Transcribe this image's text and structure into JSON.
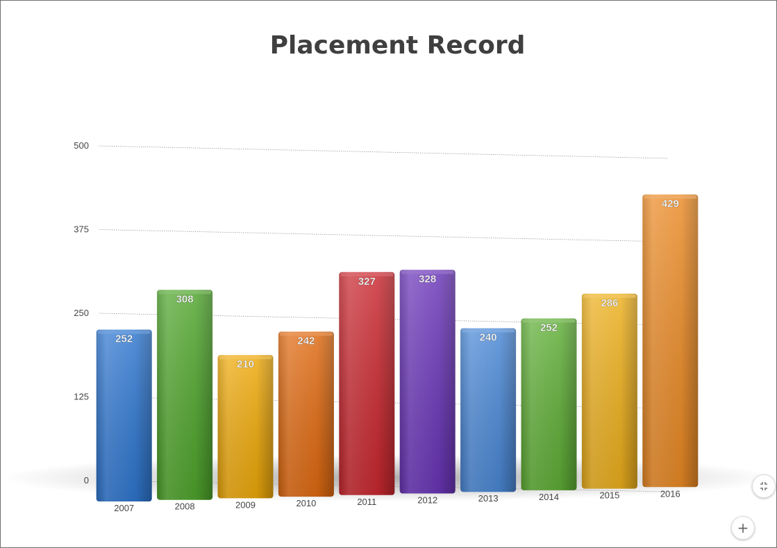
{
  "chart_data": {
    "type": "bar",
    "title": "Placement Record",
    "categories": [
      "2007",
      "2008",
      "2009",
      "2010",
      "2011",
      "2012",
      "2013",
      "2014",
      "2015",
      "2016"
    ],
    "values": [
      252,
      308,
      210,
      242,
      327,
      328,
      240,
      252,
      286,
      429
    ],
    "ylim": [
      0,
      500
    ],
    "yticks": [
      "0",
      "125",
      "250",
      "375",
      "500"
    ],
    "grid": true,
    "legend": "none",
    "colors": [
      "#2f77d0",
      "#4fa52c",
      "#eea90a",
      "#e06a11",
      "#c9282f",
      "#6a35b8",
      "#4a88d6",
      "#5fae36",
      "#edb01d",
      "#ea8a25"
    ]
  },
  "controls": {
    "fit_icon": "collapse-icon",
    "add_icon": "plus-icon"
  }
}
